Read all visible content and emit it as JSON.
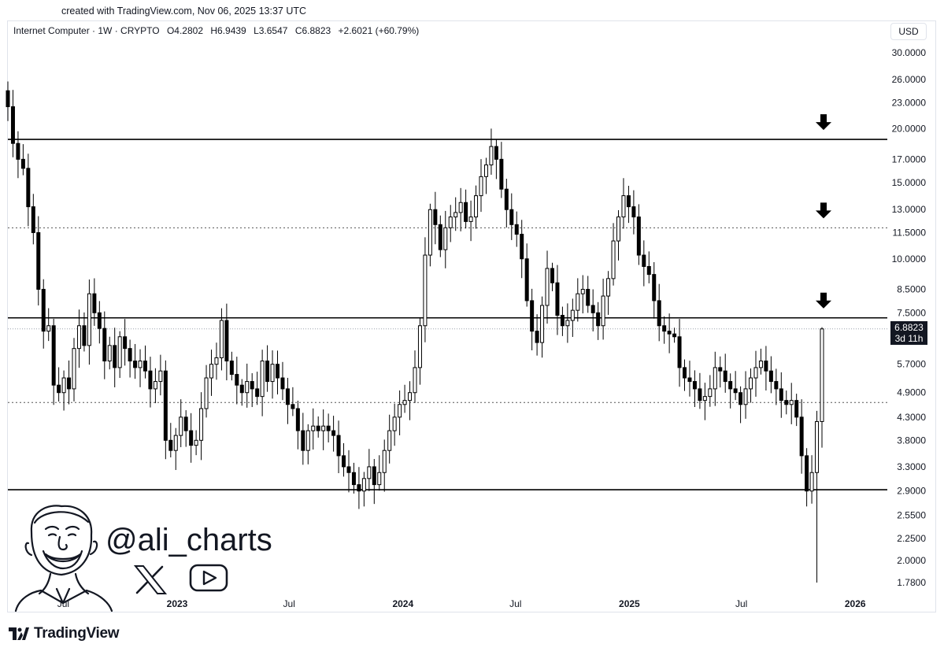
{
  "watermark": {
    "created_text": "created with TradingView.com, Nov 06, 2025 13:37 UTC",
    "brand_name": "TradingView"
  },
  "legend": {
    "symbol": "Internet Computer · 1W · CRYPTO",
    "open": "O4.2802",
    "high": "H6.9439",
    "low": "L3.6547",
    "close": "C6.8823",
    "change": "+2.6021 (+60.79%)"
  },
  "currency": "USD",
  "price_tag": {
    "price": "6.8823",
    "countdown": "3d 11h"
  },
  "author": {
    "handle": "@ali_charts",
    "icons": [
      "avatar-illustration",
      "x-logo-icon",
      "youtube-icon"
    ]
  },
  "colors": {
    "up": "#ffffff",
    "down": "#000000",
    "line": "#000000",
    "tag_bg": "#131722"
  },
  "chart_data": {
    "type": "candlestick",
    "title": "Internet Computer · 1W · CRYPTO",
    "interval": "1W",
    "y_scale": "log",
    "ylim": [
      1.7,
      32
    ],
    "y_ticks": [
      "30.0000",
      "26.0000",
      "23.0000",
      "20.0000",
      "17.0000",
      "15.0000",
      "13.0000",
      "11.5000",
      "10.0000",
      "8.5000",
      "7.5000",
      "6.8823",
      "5.7000",
      "4.9000",
      "4.3000",
      "3.8000",
      "3.3000",
      "2.9000",
      "2.5500",
      "2.2500",
      "2.0000",
      "1.7800"
    ],
    "x_ticks": [
      {
        "label": "Jul",
        "date": "2022-07-01",
        "major": false
      },
      {
        "label": "2023",
        "date": "2023-01-01",
        "major": true
      },
      {
        "label": "Jul",
        "date": "2023-07-01",
        "major": false
      },
      {
        "label": "2024",
        "date": "2024-01-01",
        "major": true
      },
      {
        "label": "Jul",
        "date": "2024-07-01",
        "major": false
      },
      {
        "label": "2025",
        "date": "2025-01-01",
        "major": true
      },
      {
        "label": "Jul",
        "date": "2025-07-01",
        "major": false
      },
      {
        "label": "2026",
        "date": "2026-01-01",
        "major": true
      }
    ],
    "levels": [
      {
        "price": 18.9,
        "style": "solid"
      },
      {
        "price": 11.8,
        "style": "dotted"
      },
      {
        "price": 7.3,
        "style": "solid"
      },
      {
        "price": 4.65,
        "style": "dotted"
      },
      {
        "price": 2.92,
        "style": "solid"
      }
    ],
    "current_price": 6.8823,
    "arrows_at": [
      18.9,
      11.8,
      7.3
    ],
    "closes": [
      22.5,
      18.5,
      17.0,
      16.2,
      13.2,
      11.5,
      8.5,
      6.8,
      7.0,
      5.1,
      4.9,
      5.3,
      5.0,
      6.2,
      7.0,
      6.3,
      8.3,
      7.5,
      6.9,
      5.8,
      6.3,
      5.6,
      6.6,
      6.2,
      5.8,
      5.6,
      5.8,
      5.5,
      5.0,
      5.2,
      5.5,
      3.8,
      3.6,
      3.9,
      4.3,
      4.0,
      3.7,
      3.8,
      4.5,
      5.3,
      5.7,
      5.9,
      7.2,
      5.8,
      5.4,
      5.1,
      4.9,
      5.2,
      5.0,
      4.8,
      5.8,
      5.2,
      5.7,
      5.3,
      5.0,
      4.6,
      4.5,
      4.0,
      3.6,
      4.0,
      4.1,
      4.0,
      4.1,
      4.0,
      3.9,
      3.5,
      3.3,
      3.2,
      3.0,
      2.9,
      3.1,
      3.3,
      3.0,
      3.2,
      3.6,
      4.0,
      4.3,
      4.6,
      4.7,
      4.9,
      5.6,
      7.0,
      10.2,
      13.0,
      12.0,
      10.5,
      11.8,
      12.5,
      12.8,
      13.5,
      12.2,
      12.5,
      14.0,
      15.5,
      16.5,
      18.2,
      17.0,
      14.5,
      13.0,
      12.0,
      11.4,
      10.0,
      8.0,
      6.8,
      6.4,
      7.8,
      9.5,
      8.8,
      7.4,
      7.0,
      7.2,
      7.6,
      8.3,
      8.5,
      7.8,
      7.5,
      7.0,
      8.2,
      9.0,
      11.0,
      12.5,
      14.0,
      13.2,
      12.5,
      10.2,
      9.6,
      9.2,
      8.0,
      7.0,
      6.8,
      6.7,
      6.6,
      5.6,
      5.3,
      5.2,
      5.0,
      4.7,
      4.8,
      5.0,
      5.6,
      5.5,
      5.2,
      5.0,
      4.9,
      4.6,
      5.0,
      5.3,
      5.6,
      5.8,
      5.5,
      5.2,
      5.0,
      4.7,
      4.6,
      4.7,
      4.3,
      3.5,
      2.9,
      3.2,
      4.2,
      6.8823
    ]
  }
}
